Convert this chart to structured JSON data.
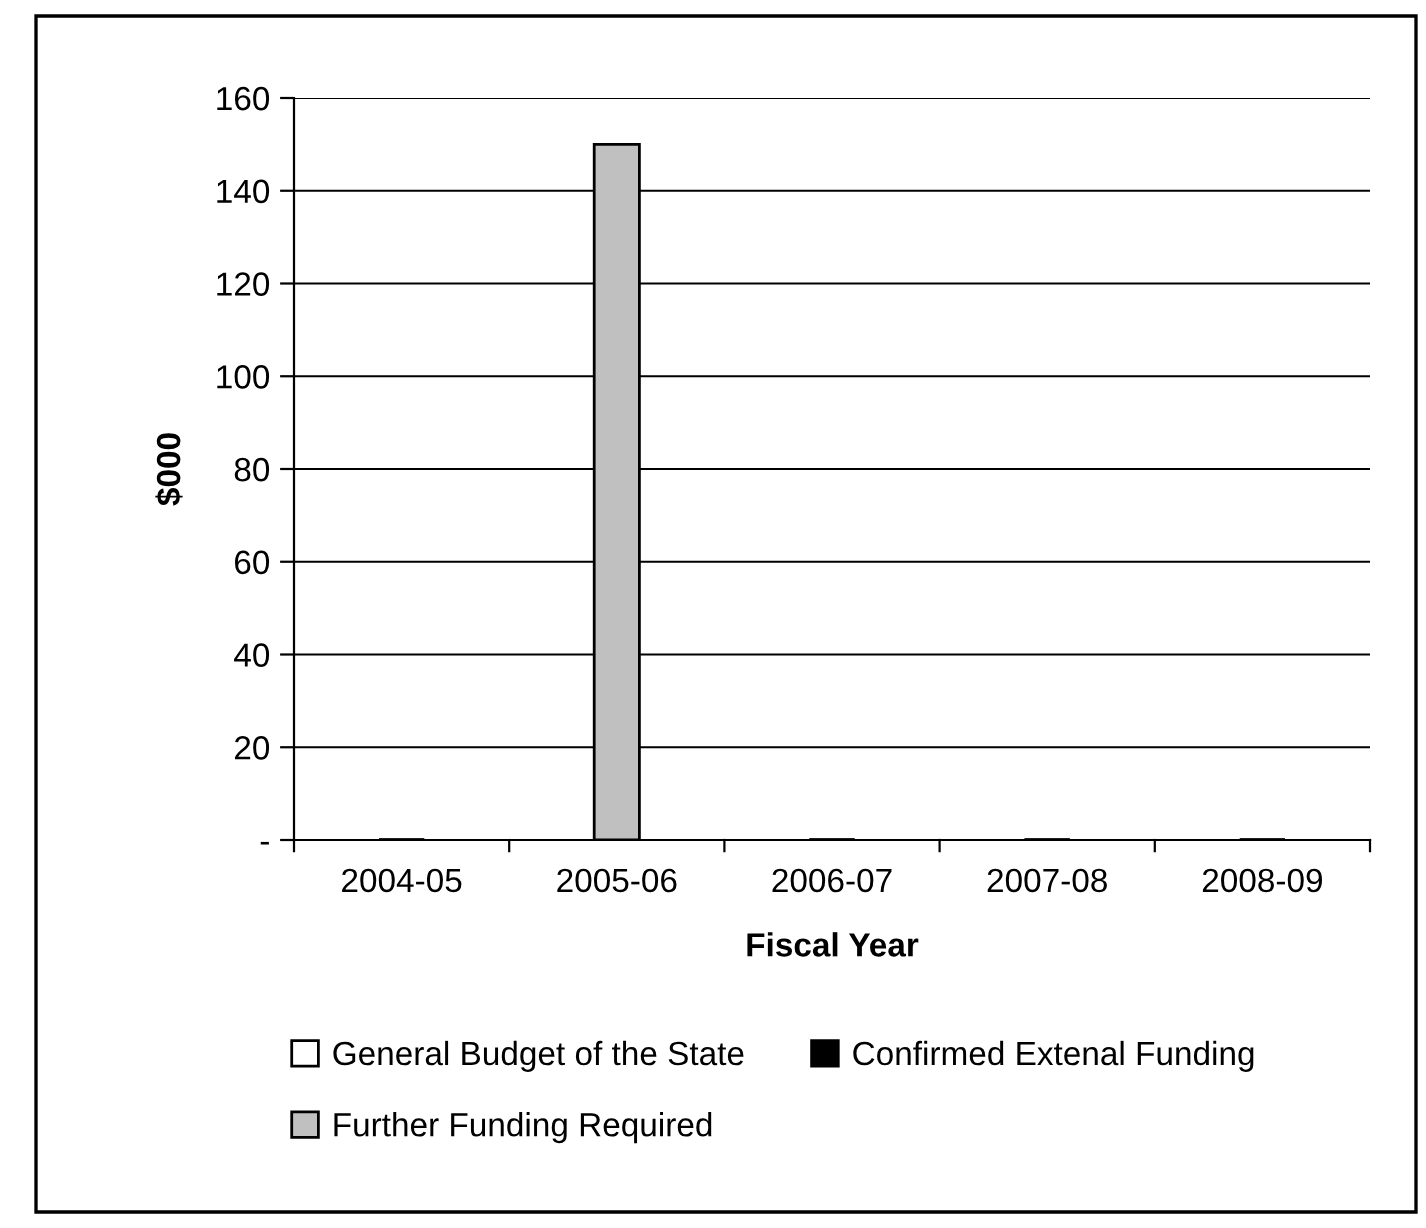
{
  "chart_data": {
    "type": "bar",
    "stacked": true,
    "xlabel": "Fiscal Year",
    "ylabel": "$000",
    "categories": [
      "2004-05",
      "2005-06",
      "2006-07",
      "2007-08",
      "2008-09"
    ],
    "series": [
      {
        "name": "General Budget of the State",
        "color": "#ffffff",
        "values": [
          0,
          0,
          0,
          0,
          0
        ]
      },
      {
        "name": "Confirmed Extenal Funding",
        "color": "#000000",
        "values": [
          0,
          0,
          0,
          0,
          0
        ]
      },
      {
        "name": "Further Funding Required",
        "color": "#c0c0c0",
        "values": [
          0,
          150,
          0,
          0,
          0
        ]
      }
    ],
    "ylim": [
      0,
      160
    ],
    "yticks": [
      {
        "value": 0,
        "label": "-"
      },
      20,
      40,
      60,
      80,
      100,
      120,
      140,
      160
    ],
    "grid": "y",
    "legend": "bottom"
  }
}
